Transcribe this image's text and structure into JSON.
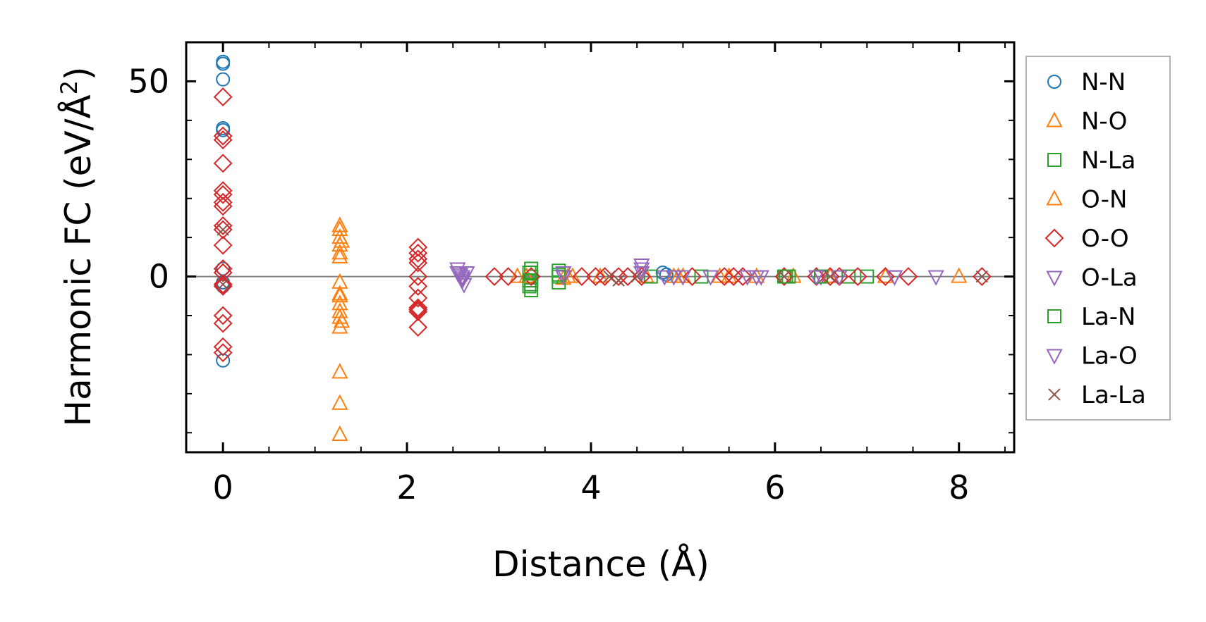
{
  "chart_data": {
    "type": "scatter",
    "xlabel": "Distance (Å)",
    "ylabel_main": "Harmonic FC (eV/Å",
    "ylabel_sup": "2",
    "ylabel_close": ")",
    "xlim": [
      -0.4,
      8.6
    ],
    "ylim": [
      -45,
      60
    ],
    "x_ticks": [
      0,
      2,
      4,
      6,
      8
    ],
    "x_tick_labels": [
      "0",
      "2",
      "4",
      "6",
      "8"
    ],
    "x_minor_step": 0.5,
    "y_ticks": [
      0,
      50
    ],
    "y_tick_labels": [
      "0",
      "50"
    ],
    "y_minor_step": 10,
    "zero_line": true,
    "grid": false,
    "legend_position": "right",
    "series": [
      {
        "name": "N-N",
        "marker": "circle",
        "color": "#1f77b4",
        "points": [
          [
            0,
            55
          ],
          [
            0,
            54.5
          ],
          [
            0,
            50.5
          ],
          [
            0,
            38
          ],
          [
            0,
            37.5
          ],
          [
            0,
            2
          ],
          [
            0,
            -1.5
          ],
          [
            0,
            -2.5
          ],
          [
            0,
            -21.5
          ],
          [
            4.78,
            1
          ],
          [
            4.82,
            0.5
          ]
        ]
      },
      {
        "name": "N-O",
        "marker": "triangle-up",
        "color": "#ff7f0e",
        "points": [
          [
            1.27,
            12
          ],
          [
            1.27,
            10
          ],
          [
            1.29,
            9
          ],
          [
            1.27,
            6
          ],
          [
            1.27,
            5
          ],
          [
            1.27,
            -1.5
          ],
          [
            1.27,
            -4.5
          ],
          [
            1.27,
            -7
          ],
          [
            1.27,
            -9
          ],
          [
            1.27,
            -10.5
          ],
          [
            1.29,
            -11.5
          ],
          [
            1.27,
            -13
          ],
          [
            1.27,
            -24.5
          ],
          [
            1.27,
            -32.5
          ],
          [
            1.27,
            -40.5
          ],
          [
            3.2,
            0
          ],
          [
            3.7,
            -0.5
          ],
          [
            3.8,
            0
          ],
          [
            4.1,
            0
          ],
          [
            4.6,
            0
          ],
          [
            4.9,
            0
          ],
          [
            5.0,
            0
          ],
          [
            5.5,
            0
          ],
          [
            5.8,
            0
          ],
          [
            6.2,
            0
          ],
          [
            6.6,
            0
          ],
          [
            7.2,
            0
          ],
          [
            8.0,
            0
          ]
        ]
      },
      {
        "name": "N-La",
        "marker": "square",
        "color": "#2ca02c",
        "points": [
          [
            3.35,
            2
          ],
          [
            3.35,
            1
          ],
          [
            3.35,
            0
          ],
          [
            3.35,
            -1
          ],
          [
            3.35,
            -2
          ],
          [
            3.35,
            -3.5
          ],
          [
            3.65,
            1.5
          ],
          [
            3.65,
            0
          ],
          [
            3.65,
            -1.5
          ],
          [
            4.65,
            0
          ],
          [
            5.2,
            0
          ],
          [
            6.1,
            0
          ],
          [
            6.15,
            0
          ],
          [
            6.5,
            0
          ],
          [
            6.8,
            0
          ],
          [
            7.0,
            0
          ]
        ]
      },
      {
        "name": "O-N",
        "marker": "triangle-up",
        "color": "#ff7f0e",
        "points": [
          [
            1.27,
            13
          ],
          [
            1.27,
            8
          ],
          [
            1.27,
            -5
          ],
          [
            3.3,
            0
          ],
          [
            3.75,
            0
          ],
          [
            4.95,
            0
          ],
          [
            5.4,
            0
          ]
        ]
      },
      {
        "name": "O-O",
        "marker": "diamond",
        "color": "#d62728",
        "points": [
          [
            0,
            46
          ],
          [
            0,
            36
          ],
          [
            0,
            35
          ],
          [
            0,
            29
          ],
          [
            0,
            22
          ],
          [
            0,
            21
          ],
          [
            0,
            19
          ],
          [
            0,
            18
          ],
          [
            0,
            13
          ],
          [
            0,
            12
          ],
          [
            0,
            8
          ],
          [
            0,
            2
          ],
          [
            0,
            1
          ],
          [
            0,
            -2
          ],
          [
            0,
            -2.5
          ],
          [
            0,
            -10
          ],
          [
            0,
            -12
          ],
          [
            0,
            -18
          ],
          [
            0,
            -19.5
          ],
          [
            2.12,
            7.5
          ],
          [
            2.12,
            6
          ],
          [
            2.12,
            4.5
          ],
          [
            2.12,
            3.5
          ],
          [
            2.12,
            0
          ],
          [
            2.12,
            -2.5
          ],
          [
            2.12,
            -5.5
          ],
          [
            2.12,
            -8
          ],
          [
            2.12,
            -8.5
          ],
          [
            2.12,
            -9
          ],
          [
            2.12,
            -13
          ],
          [
            2.95,
            0
          ],
          [
            3.1,
            0
          ],
          [
            3.35,
            0
          ],
          [
            3.9,
            0
          ],
          [
            4.05,
            0
          ],
          [
            4.15,
            0
          ],
          [
            4.3,
            0
          ],
          [
            4.4,
            0
          ],
          [
            4.55,
            0
          ],
          [
            5.1,
            0
          ],
          [
            5.45,
            0
          ],
          [
            5.55,
            0
          ],
          [
            5.65,
            0
          ],
          [
            6.1,
            0
          ],
          [
            6.45,
            0
          ],
          [
            6.6,
            0
          ],
          [
            6.7,
            0
          ],
          [
            6.9,
            0
          ],
          [
            7.2,
            0
          ],
          [
            7.45,
            0
          ],
          [
            8.25,
            0
          ]
        ]
      },
      {
        "name": "O-La",
        "marker": "triangle-down",
        "color": "#9467bd",
        "points": [
          [
            2.55,
            2
          ],
          [
            2.55,
            1
          ],
          [
            2.58,
            0.5
          ],
          [
            2.6,
            0
          ],
          [
            2.6,
            -1
          ],
          [
            2.62,
            -2
          ],
          [
            2.65,
            1
          ],
          [
            3.7,
            0
          ],
          [
            4.55,
            2
          ],
          [
            4.55,
            1
          ],
          [
            4.9,
            0
          ],
          [
            5.3,
            0
          ],
          [
            5.7,
            0
          ],
          [
            5.85,
            0
          ],
          [
            6.5,
            0
          ],
          [
            6.7,
            0
          ],
          [
            7.3,
            0
          ],
          [
            7.75,
            0
          ]
        ]
      },
      {
        "name": "La-N",
        "marker": "square",
        "color": "#2ca02c",
        "points": [
          [
            3.33,
            1
          ],
          [
            3.33,
            -1
          ],
          [
            3.33,
            -2.5
          ],
          [
            3.65,
            0.5
          ],
          [
            6.12,
            0
          ],
          [
            6.5,
            0
          ]
        ]
      },
      {
        "name": "La-O",
        "marker": "triangle-down",
        "color": "#9467bd",
        "points": [
          [
            2.57,
            1
          ],
          [
            2.6,
            -0.5
          ],
          [
            3.7,
            1
          ],
          [
            4.55,
            3
          ],
          [
            4.8,
            0
          ],
          [
            5.0,
            0
          ],
          [
            5.8,
            0
          ],
          [
            6.45,
            0
          ],
          [
            7.3,
            0
          ]
        ]
      },
      {
        "name": "La-La",
        "marker": "x",
        "color": "#8c564b",
        "points": [
          [
            0,
            12
          ],
          [
            0,
            -2
          ],
          [
            4.2,
            0
          ],
          [
            4.3,
            -1
          ],
          [
            4.5,
            0
          ],
          [
            6.1,
            0
          ],
          [
            6.6,
            0
          ],
          [
            8.25,
            0
          ]
        ]
      }
    ]
  }
}
